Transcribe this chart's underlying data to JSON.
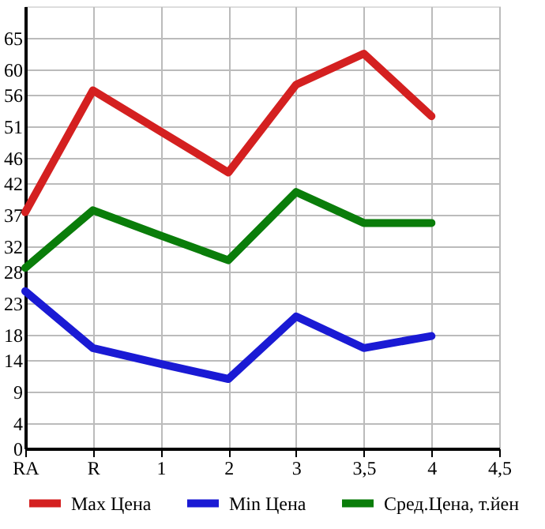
{
  "chart_data": {
    "type": "line",
    "categories": [
      "RA",
      "R",
      "1",
      "2",
      "3",
      "3,5",
      "4",
      "4,5"
    ],
    "series": [
      {
        "name": "Max Цена",
        "color": "#d42020",
        "values": [
          37.4,
          56.7,
          50.2,
          43.7,
          57.6,
          62.5,
          52.6,
          null
        ]
      },
      {
        "name": "Min Цена",
        "color": "#1a1ad4",
        "values": [
          24.9,
          15.9,
          13.4,
          11.0,
          20.9,
          15.9,
          17.8,
          null
        ]
      },
      {
        "name": "Сред.Цена, т.йен",
        "color": "#0a7d0a",
        "values": [
          28.6,
          37.7,
          33.7,
          29.8,
          40.6,
          35.7,
          35.7,
          null
        ]
      }
    ],
    "ylim": [
      0,
      70
    ],
    "yticks": [
      0,
      4,
      9,
      14,
      18,
      23,
      28,
      32,
      37,
      42,
      46,
      51,
      56,
      60,
      65
    ],
    "grid": true,
    "legend": "bottom",
    "marker": "none",
    "line_style": "solid"
  }
}
